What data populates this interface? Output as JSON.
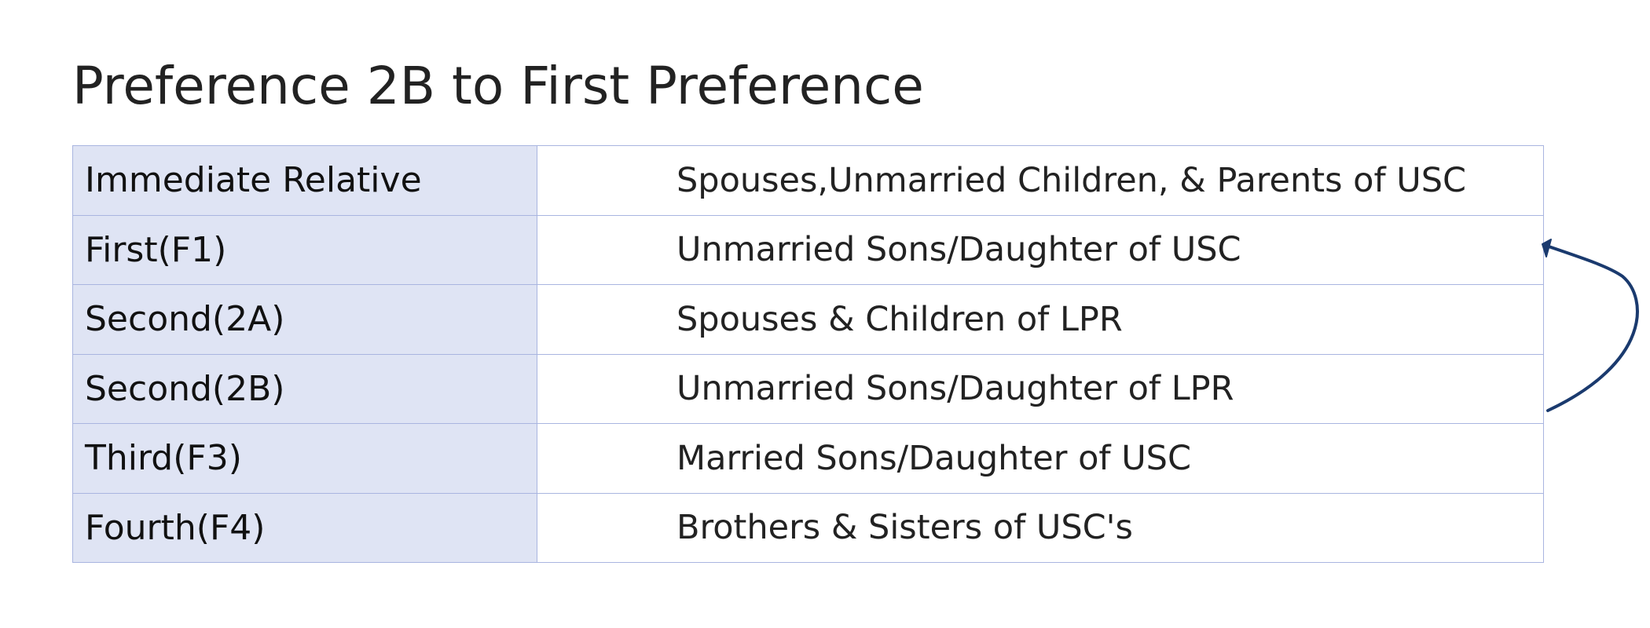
{
  "slide": {
    "title": "Preference 2B to First Preference"
  },
  "table": {
    "rows": [
      {
        "category": "Immediate Relative",
        "description": "Spouses,Unmarried Children, & Parents of USC"
      },
      {
        "category": "First(F1)",
        "description": "Unmarried Sons/Daughter of USC"
      },
      {
        "category": "Second(2A)",
        "description": "Spouses & Children of LPR"
      },
      {
        "category": "Second(2B)",
        "description": "Unmarried Sons/Daughter of LPR"
      },
      {
        "category": "Third(F3)",
        "description": "Married Sons/Daughter of USC"
      },
      {
        "category": "Fourth(F4)",
        "description": "Brothers & Sisters of USC's"
      }
    ]
  },
  "annotation": {
    "arrow_icon": "curved-arrow-icon",
    "arrow_color": "#1a3a6e"
  },
  "colors": {
    "category_fill": "#dfe4f4",
    "border": "#a9b5e0",
    "text": "#222222"
  }
}
